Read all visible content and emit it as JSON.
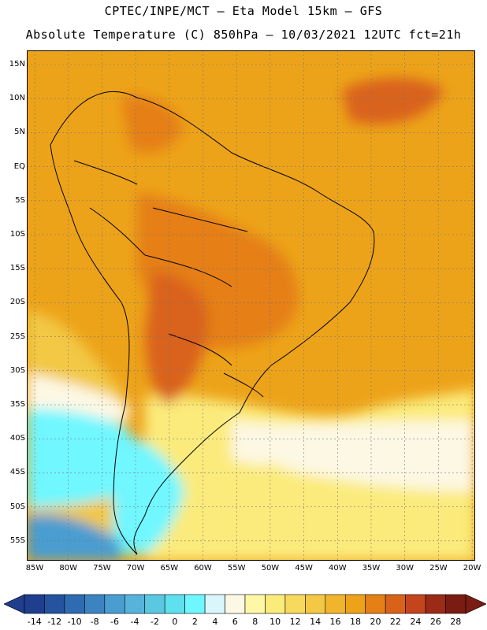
{
  "header": {
    "line1": "CPTEC/INPE/MCT –  Eta Model 15km – GFS",
    "line2": "Absolute Temperature (C) 850hPa – 10/03/2021 12UTC fct=21h"
  },
  "axes": {
    "lat_labels": [
      "15N",
      "10N",
      "5N",
      "EQ",
      "5S",
      "10S",
      "15S",
      "20S",
      "25S",
      "30S",
      "35S",
      "40S",
      "45S",
      "50S",
      "55S"
    ],
    "lon_labels": [
      "85W",
      "80W",
      "75W",
      "70W",
      "65W",
      "60W",
      "55W",
      "50W",
      "45W",
      "40W",
      "35W",
      "30W",
      "25W",
      "20W"
    ]
  },
  "colorbar": {
    "labels": [
      "-14",
      "-12",
      "-10",
      "-8",
      "-6",
      "-4",
      "-2",
      "0",
      "2",
      "4",
      "6",
      "8",
      "10",
      "12",
      "14",
      "16",
      "18",
      "20",
      "22",
      "24",
      "26",
      "28"
    ],
    "colors": [
      "#1f3e8e",
      "#2553a0",
      "#2f6bb0",
      "#3b84c1",
      "#4a9dd0",
      "#58b3dc",
      "#5ac8e0",
      "#5fe0ee",
      "#6ff7ff",
      "#d8f6fb",
      "#fdf8e4",
      "#fdf7a6",
      "#fbeb7b",
      "#f7d95e",
      "#f2c845",
      "#f0b52d",
      "#eda319",
      "#e57f16",
      "#d9621a",
      "#c4441c",
      "#9b2a17",
      "#7a1c12"
    ]
  },
  "colors": {
    "warm_orange": "#eda319",
    "hot_orange": "#e57f16",
    "very_hot": "#d9621a",
    "mid_yellow": "#f2c845",
    "pale_yellow": "#fbeb7b",
    "cream": "#fdf8e4",
    "cyan": "#6ff7ff",
    "blue": "#4a9dd0"
  }
}
